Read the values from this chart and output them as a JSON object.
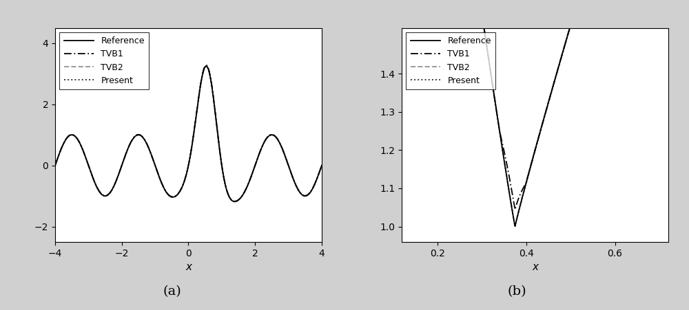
{
  "fig_width": 10.0,
  "fig_height": 4.51,
  "bg_color": "#d0d0d0",
  "plot_bg_color": "#ffffff",
  "label_a": "(a)",
  "label_b": "(b)",
  "label_fontsize": 14,
  "xlabel": "x",
  "xlabel_fontsize": 11,
  "tick_fontsize": 10,
  "legend_fontsize": 9,
  "line_colors": {
    "reference": "#000000",
    "tvb1": "#000000",
    "tvb2": "#999999",
    "present": "#333333"
  },
  "plot_a": {
    "xlim": [
      -4,
      4
    ],
    "ylim": [
      -2.5,
      4.5
    ],
    "yticks": [
      -2,
      0,
      2,
      4
    ],
    "xticks": [
      -4,
      -2,
      0,
      2,
      4
    ]
  },
  "plot_b": {
    "xlim": [
      0.12,
      0.72
    ],
    "ylim": [
      0.96,
      1.52
    ],
    "yticks": [
      1.0,
      1.1,
      1.2,
      1.3,
      1.4
    ],
    "xticks": [
      0.2,
      0.4,
      0.6
    ]
  }
}
